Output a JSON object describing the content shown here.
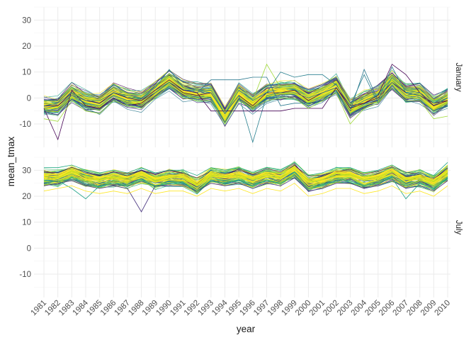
{
  "chart_data": {
    "type": "line",
    "xlabel": "year",
    "ylabel": "mean_tmax",
    "x": [
      "1981",
      "1982",
      "1983",
      "1984",
      "1985",
      "1986",
      "1987",
      "1988",
      "1989",
      "1990",
      "1991",
      "1992",
      "1993",
      "1994",
      "1995",
      "1996",
      "1997",
      "1998",
      "1999",
      "2000",
      "2001",
      "2002",
      "2003",
      "2004",
      "2005",
      "2006",
      "2007",
      "2008",
      "2009",
      "2010"
    ],
    "y_ticks": [
      -10,
      0,
      10,
      20,
      30
    ],
    "ylim": [
      -19,
      35
    ],
    "grid": true,
    "color_scale": "viridis",
    "panels": [
      {
        "label": "January",
        "median": [
          -3,
          -3,
          2,
          -1,
          -2,
          2,
          0,
          -1,
          3,
          7,
          3,
          2,
          2,
          -7,
          2,
          -2,
          2,
          3,
          3,
          0,
          2,
          5,
          -4,
          -1,
          1,
          7,
          2,
          2,
          -3,
          0
        ],
        "spread": 3.5,
        "outliers": [
          {
            "values": [
              -4,
              -16,
              3,
              -3,
              -4,
              0,
              -3,
              -2,
              2,
              6,
              2,
              1,
              2,
              -6,
              1,
              -3,
              2,
              2,
              3,
              -1,
              2,
              4,
              -3,
              -2,
              0,
              6,
              2,
              1,
              -2,
              -1
            ]
          },
          {
            "values": [
              -5,
              -4,
              1,
              -2,
              -3,
              1,
              -1,
              -1,
              3,
              6,
              3,
              3,
              2,
              -6,
              1,
              -17,
              1,
              2,
              2,
              0,
              2,
              4,
              -4,
              -1,
              1,
              6,
              1,
              2,
              -2,
              0
            ]
          },
          {
            "values": [
              -2,
              -2,
              2,
              0,
              -1,
              2,
              1,
              0,
              4,
              8,
              4,
              3,
              3,
              -5,
              3,
              -1,
              13,
              4,
              4,
              1,
              3,
              6,
              -2,
              0,
              2,
              8,
              3,
              3,
              -1,
              1
            ]
          },
          {
            "values": [
              -4,
              -3,
              1,
              -1,
              -2,
              1,
              -1,
              -1,
              2,
              6,
              3,
              2,
              7,
              7,
              7,
              8,
              8,
              -3,
              -2,
              -2,
              -1,
              3,
              -5,
              11,
              -1,
              12,
              2,
              1,
              -3,
              0
            ]
          },
          {
            "values": [
              -3,
              -3,
              2,
              -1,
              -2,
              2,
              0,
              -1,
              3,
              7,
              3,
              2,
              -5,
              -5,
              -5,
              -5,
              -5,
              -5,
              -4,
              -4,
              -4,
              4,
              -4,
              -2,
              1,
              13,
              9,
              2,
              -3,
              -1
            ]
          },
          {
            "values": [
              -3,
              -2,
              2,
              -1,
              -1,
              2,
              1,
              0,
              4,
              11,
              4,
              3,
              3,
              -6,
              3,
              -1,
              2,
              10,
              8,
              9,
              9,
              5,
              -3,
              9,
              -2,
              8,
              3,
              2,
              -2,
              1
            ]
          },
          {
            "values": [
              -8,
              -9,
              -1,
              -5,
              -6,
              -1,
              -3,
              -4,
              0,
              5,
              0,
              -1,
              -1,
              -10,
              -1,
              -4,
              -1,
              0,
              0,
              -4,
              -1,
              2,
              -10,
              -4,
              -2,
              4,
              -1,
              -1,
              -8,
              -7
            ]
          }
        ]
      },
      {
        "label": "July",
        "median": [
          27,
          27,
          29,
          27,
          26,
          27,
          26,
          28,
          26,
          27,
          27,
          24,
          28,
          27,
          28,
          26,
          28,
          27,
          30,
          25,
          26,
          28,
          28,
          26,
          27,
          29,
          26,
          27,
          25,
          29
        ],
        "spread": 2.5,
        "outliers": [
          {
            "values": [
              24,
              25,
              26,
              24,
              23,
              24,
              23,
              14,
              24,
              24,
              24,
              22,
              25,
              24,
              25,
              23,
              25,
              24,
              27,
              22,
              23,
              25,
              25,
              23,
              24,
              26,
              23,
              24,
              22,
              26
            ]
          },
          {
            "values": [
              25,
              26,
              23,
              19,
              24,
              25,
              24,
              26,
              24,
              25,
              25,
              22,
              26,
              25,
              26,
              24,
              26,
              25,
              28,
              23,
              24,
              26,
              26,
              24,
              25,
              27,
              19,
              25,
              23,
              27
            ]
          },
          {
            "values": [
              22,
              23,
              24,
              22,
              21,
              22,
              21,
              23,
              21,
              22,
              22,
              20,
              23,
              22,
              23,
              21,
              23,
              22,
              25,
              20,
              21,
              23,
              23,
              21,
              22,
              24,
              21,
              22,
              20,
              24
            ]
          },
          {
            "values": [
              31,
              31,
              32,
              30,
              29,
              30,
              29,
              31,
              29,
              30,
              30,
              28,
              31,
              30,
              31,
              29,
              31,
              30,
              33,
              28,
              29,
              31,
              31,
              29,
              30,
              32,
              29,
              30,
              28,
              33
            ]
          }
        ]
      }
    ]
  }
}
